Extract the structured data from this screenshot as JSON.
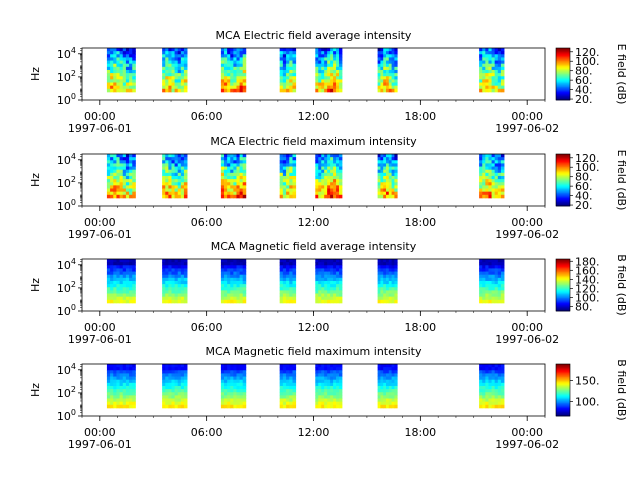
{
  "chart_data": [
    {
      "type": "heatmap",
      "title": "MCA  Electric field average intensity",
      "ylabel": "Hz",
      "ylim": [
        1,
        31623
      ],
      "yscale": "log",
      "y_ticks": [
        {
          "base": "10",
          "exp": "0",
          "value": 1
        },
        {
          "base": "10",
          "exp": "2",
          "value": 100
        },
        {
          "base": "10",
          "exp": "4",
          "value": 10000
        }
      ],
      "x_range_hours": [
        -1,
        25
      ],
      "x_ticks": [
        {
          "hour": 0,
          "time": "00:00",
          "date": "1997-06-01"
        },
        {
          "hour": 6,
          "time": "06:00"
        },
        {
          "hour": 12,
          "time": "12:00"
        },
        {
          "hour": 18,
          "time": "18:00"
        },
        {
          "hour": 24,
          "time": "00:00",
          "date": "1997-06-02"
        }
      ],
      "colorbar": {
        "label": "E field (dB)",
        "min": 18,
        "max": 128,
        "ticks": [
          20,
          40,
          60,
          80,
          100,
          120
        ],
        "tick_labels": [
          "20.",
          "40.",
          "60.",
          "80.",
          "100.",
          "120."
        ]
      },
      "data_segments_hours": [
        [
          0.4,
          2.0
        ],
        [
          3.5,
          4.9
        ],
        [
          6.8,
          8.2
        ],
        [
          10.1,
          11.0
        ],
        [
          12.1,
          13.6
        ],
        [
          15.6,
          16.7
        ],
        [
          21.3,
          22.7
        ]
      ],
      "low_freq_cutoff_hz": 5,
      "intensity_low_freq_db": 90,
      "intensity_high_freq_db": 40
    },
    {
      "type": "heatmap",
      "title": "MCA  Electric field maximum intensity",
      "ylabel": "Hz",
      "ylim": [
        1,
        31623
      ],
      "yscale": "log",
      "y_ticks": [
        {
          "base": "10",
          "exp": "0",
          "value": 1
        },
        {
          "base": "10",
          "exp": "2",
          "value": 100
        },
        {
          "base": "10",
          "exp": "4",
          "value": 10000
        }
      ],
      "x_range_hours": [
        -1,
        25
      ],
      "x_ticks": [
        {
          "hour": 0,
          "time": "00:00",
          "date": "1997-06-01"
        },
        {
          "hour": 6,
          "time": "06:00"
        },
        {
          "hour": 12,
          "time": "12:00"
        },
        {
          "hour": 18,
          "time": "18:00"
        },
        {
          "hour": 24,
          "time": "00:00",
          "date": "1997-06-02"
        }
      ],
      "colorbar": {
        "label": "E field (dB)",
        "min": 18,
        "max": 128,
        "ticks": [
          20,
          40,
          60,
          80,
          100,
          120
        ],
        "tick_labels": [
          "20.",
          "40.",
          "60.",
          "80.",
          "100.",
          "120."
        ]
      },
      "data_segments_hours": [
        [
          0.4,
          2.0
        ],
        [
          3.5,
          4.9
        ],
        [
          6.8,
          8.2
        ],
        [
          10.1,
          11.0
        ],
        [
          12.1,
          13.6
        ],
        [
          15.6,
          16.7
        ],
        [
          21.3,
          22.7
        ]
      ],
      "low_freq_cutoff_hz": 5,
      "intensity_low_freq_db": 95,
      "intensity_high_freq_db": 45
    },
    {
      "type": "heatmap",
      "title": "MCA  Magnetic field average intensity",
      "ylabel": "Hz",
      "ylim": [
        1,
        31623
      ],
      "yscale": "log",
      "y_ticks": [
        {
          "base": "10",
          "exp": "0",
          "value": 1
        },
        {
          "base": "10",
          "exp": "2",
          "value": 100
        },
        {
          "base": "10",
          "exp": "4",
          "value": 10000
        }
      ],
      "x_range_hours": [
        -1,
        25
      ],
      "x_ticks": [
        {
          "hour": 0,
          "time": "00:00",
          "date": "1997-06-01"
        },
        {
          "hour": 6,
          "time": "06:00"
        },
        {
          "hour": 12,
          "time": "12:00"
        },
        {
          "hour": 18,
          "time": "18:00"
        },
        {
          "hour": 24,
          "time": "00:00",
          "date": "1997-06-02"
        }
      ],
      "colorbar": {
        "label": "B field (dB)",
        "min": 70,
        "max": 185,
        "ticks": [
          80,
          100,
          120,
          140,
          160,
          180
        ],
        "tick_labels": [
          "80.",
          "100.",
          "120.",
          "140.",
          "160.",
          "180."
        ]
      },
      "data_segments_hours": [
        [
          0.4,
          2.0
        ],
        [
          3.5,
          4.9
        ],
        [
          6.8,
          8.2
        ],
        [
          10.1,
          11.0
        ],
        [
          12.1,
          13.6
        ],
        [
          15.6,
          16.7
        ],
        [
          21.3,
          22.7
        ]
      ],
      "low_freq_cutoff_hz": 5,
      "intensity_low_freq_db": 140,
      "intensity_high_freq_db": 75
    },
    {
      "type": "heatmap",
      "title": "MCA  Magnetic field maximum intensity",
      "ylabel": "Hz",
      "ylim": [
        1,
        31623
      ],
      "yscale": "log",
      "y_ticks": [
        {
          "base": "10",
          "exp": "0",
          "value": 1
        },
        {
          "base": "10",
          "exp": "2",
          "value": 100
        },
        {
          "base": "10",
          "exp": "4",
          "value": 10000
        }
      ],
      "x_range_hours": [
        -1,
        25
      ],
      "x_ticks": [
        {
          "hour": 0,
          "time": "00:00",
          "date": "1997-06-01"
        },
        {
          "hour": 6,
          "time": "06:00"
        },
        {
          "hour": 12,
          "time": "12:00"
        },
        {
          "hour": 18,
          "time": "18:00"
        },
        {
          "hour": 24,
          "time": "00:00",
          "date": "1997-06-02"
        }
      ],
      "colorbar": {
        "label": "B field (dB)",
        "min": 65,
        "max": 190,
        "ticks": [
          100,
          150
        ],
        "tick_labels": [
          "100.",
          "150."
        ]
      },
      "data_segments_hours": [
        [
          0.4,
          2.0
        ],
        [
          3.5,
          4.9
        ],
        [
          6.8,
          8.2
        ],
        [
          10.1,
          11.0
        ],
        [
          12.1,
          13.6
        ],
        [
          15.6,
          16.7
        ],
        [
          21.3,
          22.7
        ]
      ],
      "low_freq_cutoff_hz": 5,
      "intensity_low_freq_db": 145,
      "intensity_high_freq_db": 80
    }
  ]
}
